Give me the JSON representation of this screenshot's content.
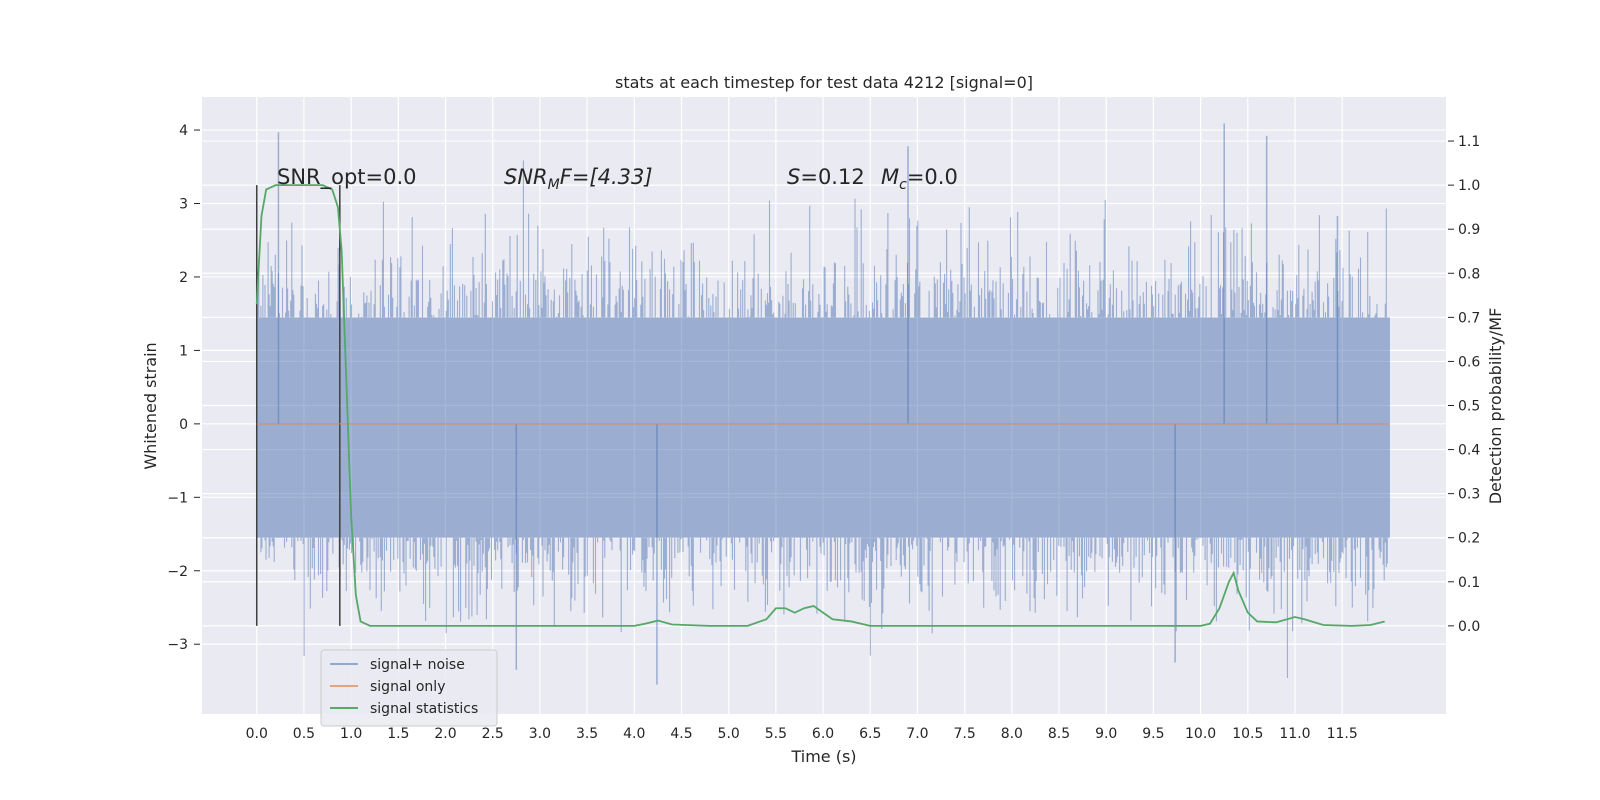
{
  "chart_data": {
    "type": "line",
    "title": "stats at each timestep for test data 4212 [signal=0]",
    "xlabel": "Time (s)",
    "ylabel_left": "Whitened strain",
    "ylabel_right": "Detection probability/MF",
    "xlim": [
      -0.58,
      12.6
    ],
    "ylim_left": [
      -3.95,
      4.45
    ],
    "ylim_right": [
      -0.2,
      1.2
    ],
    "x_ticks": [
      "0.0",
      "0.5",
      "1.0",
      "1.5",
      "2.0",
      "2.5",
      "3.0",
      "3.5",
      "4.0",
      "4.5",
      "5.0",
      "5.5",
      "6.0",
      "6.5",
      "7.0",
      "7.5",
      "8.0",
      "8.5",
      "9.0",
      "9.5",
      "10.0",
      "10.5",
      "11.0",
      "11.5"
    ],
    "y_left_ticks": [
      "4",
      "3",
      "2",
      "1",
      "0",
      "−1",
      "−2",
      "−3"
    ],
    "y_right_ticks": [
      "1.1",
      "1.0",
      "0.9",
      "0.8",
      "0.7",
      "0.6",
      "0.5",
      "0.4",
      "0.3",
      "0.2",
      "0.1",
      "0.0"
    ],
    "grid": true,
    "legend_position": "lower-left",
    "annotations": {
      "snr_opt": "SNR_opt=0.0",
      "snr_mf_var": "SNR",
      "snr_mf_sub": "M",
      "snr_mf_rest": "F=[4.33]",
      "s_var": "S",
      "s_rest": "=0.12",
      "mc_var": "M",
      "mc_sub": "c",
      "mc_rest": "=0.0"
    },
    "series": [
      {
        "name": "signal+ noise",
        "axis": "left",
        "color": "#4c72b0",
        "description": "whitened noise time series, roughly -3.5 to 4.1",
        "x_range": [
          0.0,
          12.0
        ],
        "envelope": {
          "core_lower": -1.55,
          "core_upper": 1.45,
          "peak_max": 4.1,
          "peak_min": -3.55
        }
      },
      {
        "name": "signal only",
        "axis": "left",
        "color": "#dd8452",
        "x": [
          0.0,
          12.0
        ],
        "y": [
          0.0,
          0.0
        ]
      },
      {
        "name": "signal statistics",
        "axis": "right",
        "color": "#55a868",
        "x": [
          0.0,
          0.05,
          0.1,
          0.2,
          0.3,
          0.5,
          0.7,
          0.8,
          0.86,
          0.9,
          0.95,
          1.0,
          1.05,
          1.1,
          1.2,
          1.5,
          2.0,
          3.0,
          4.0,
          4.12,
          4.25,
          4.4,
          4.8,
          5.2,
          5.4,
          5.5,
          5.6,
          5.7,
          5.8,
          5.9,
          6.0,
          6.1,
          6.3,
          6.5,
          7.0,
          8.0,
          9.0,
          10.0,
          10.1,
          10.2,
          10.3,
          10.35,
          10.4,
          10.5,
          10.6,
          10.8,
          11.0,
          11.1,
          11.3,
          11.6,
          11.8,
          11.95
        ],
        "y": [
          0.73,
          0.93,
          0.99,
          1.0,
          1.0,
          1.0,
          1.0,
          0.99,
          0.95,
          0.85,
          0.55,
          0.25,
          0.07,
          0.01,
          0.0,
          0.0,
          0.0,
          0.0,
          0.0,
          0.005,
          0.012,
          0.003,
          0.0,
          0.0,
          0.015,
          0.04,
          0.04,
          0.03,
          0.04,
          0.045,
          0.03,
          0.015,
          0.01,
          0.0,
          0.0,
          0.0,
          0.0,
          0.0,
          0.005,
          0.04,
          0.1,
          0.12,
          0.08,
          0.03,
          0.01,
          0.008,
          0.02,
          0.015,
          0.002,
          0.0,
          0.002,
          0.01
        ]
      }
    ],
    "vlines": [
      {
        "x": 0.0,
        "ymin": -2.75,
        "ymax": 3.25,
        "color": "#3f3f3f"
      },
      {
        "x": 0.88,
        "ymin": -2.75,
        "ymax": 3.25,
        "color": "#3f3f3f"
      }
    ]
  }
}
